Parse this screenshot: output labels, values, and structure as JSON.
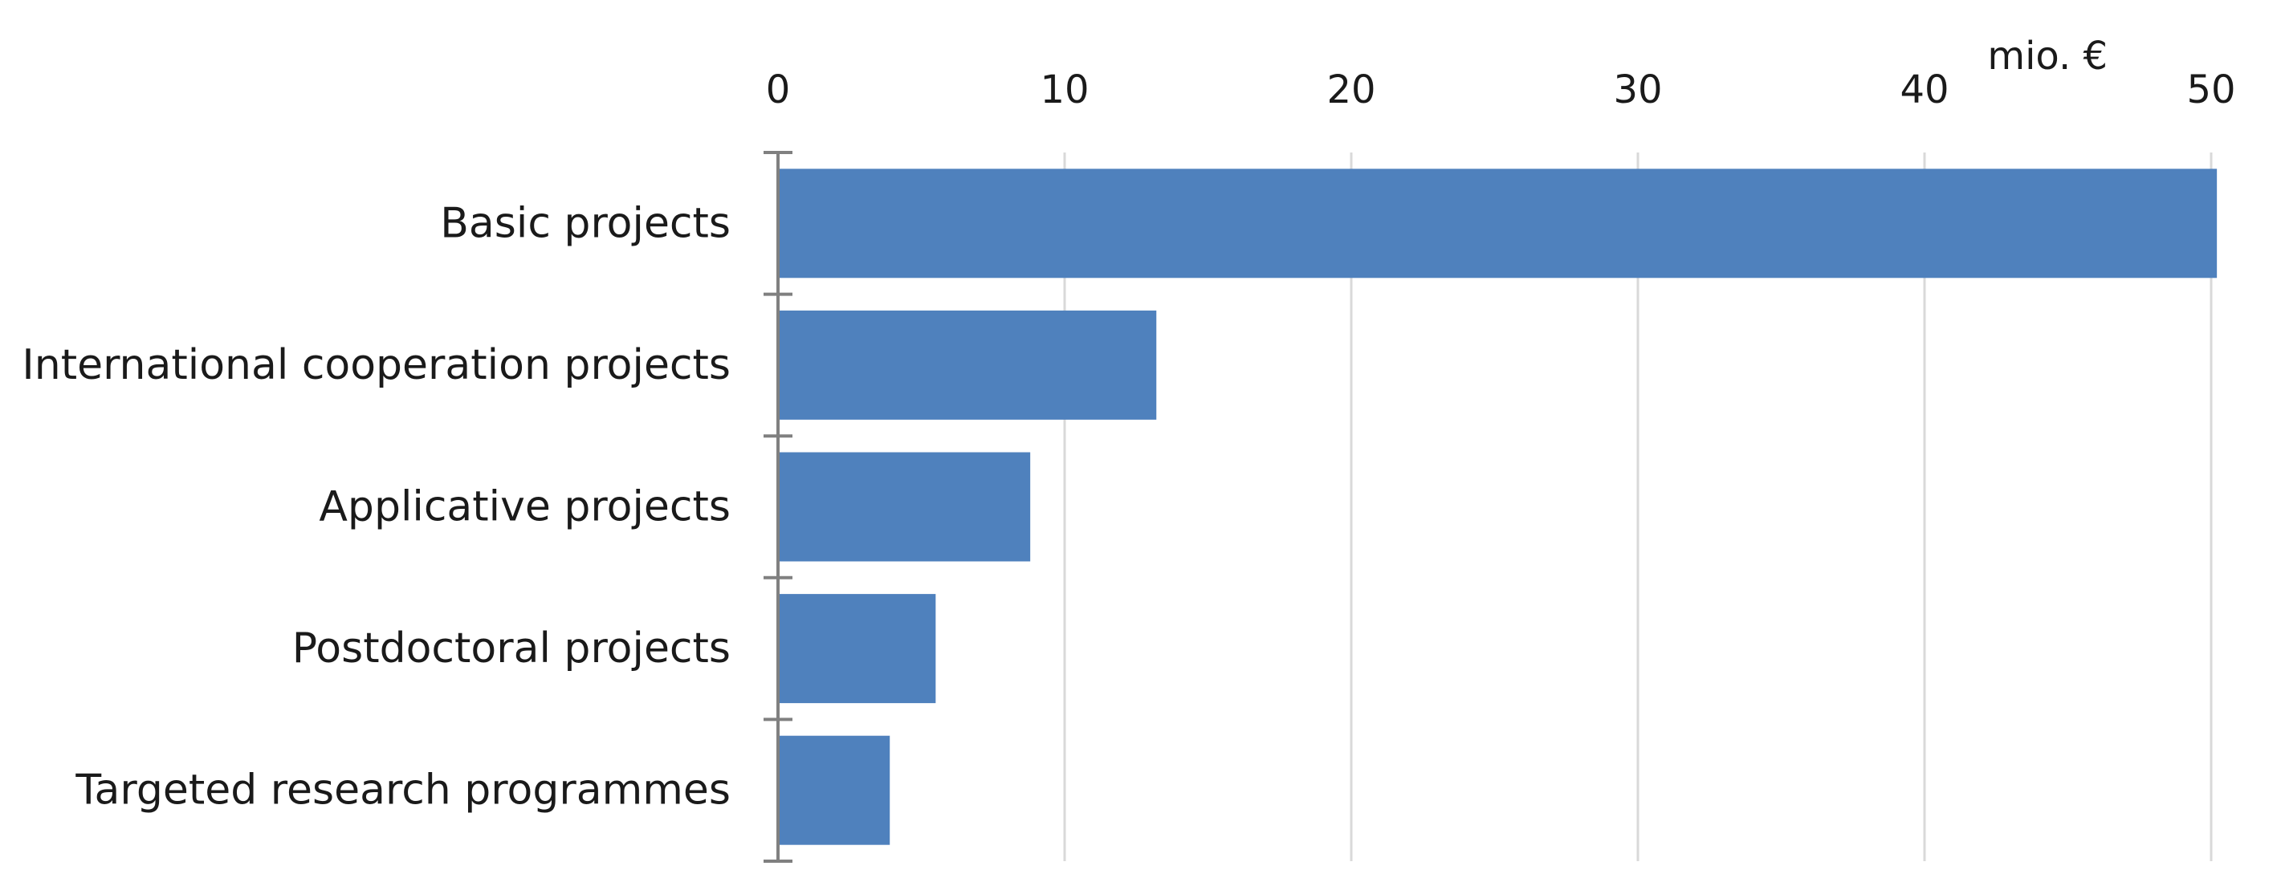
{
  "chart_data": {
    "type": "bar",
    "orientation": "horizontal",
    "categories": [
      "Basic projects",
      "International cooperation projects",
      "Applicative projects",
      "Postdoctoral projects",
      "Targeted research programmes"
    ],
    "values": [
      50.2,
      13.2,
      8.8,
      5.5,
      3.9
    ],
    "unit_label": "mio. €",
    "xlim": [
      0,
      50
    ],
    "xticks": [
      0,
      10,
      20,
      30,
      40,
      50
    ],
    "x_axis_position": "top",
    "grid": true,
    "legend": "none",
    "bar_color": "#4f81bd",
    "gridline_color": "#d9d9d9",
    "axis_color": "#808080"
  }
}
